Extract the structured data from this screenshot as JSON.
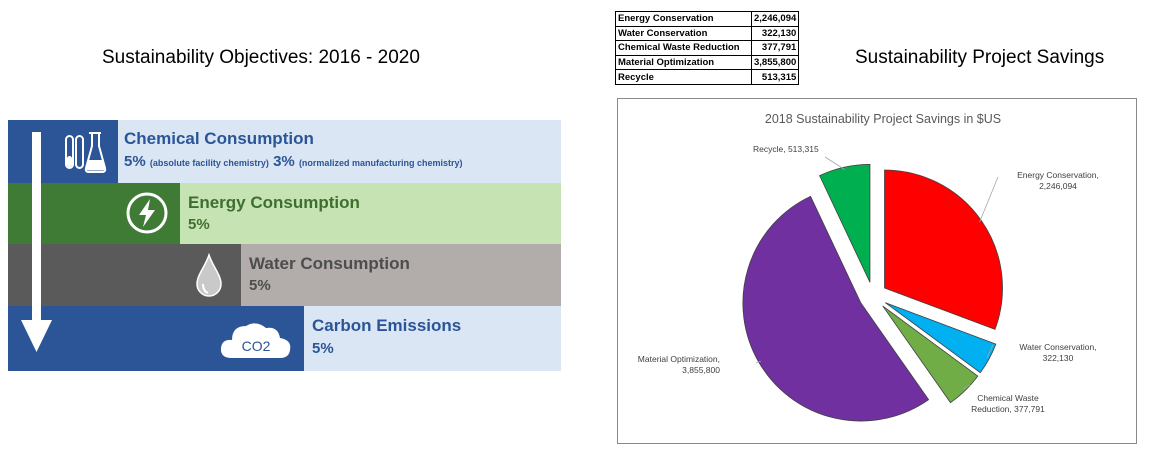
{
  "left_heading": "Sustainability Objectives: 2016 - 2020",
  "right_heading": "Sustainability Project Savings",
  "objectives": {
    "chemical": {
      "title": "Chemical Consumption",
      "value1": "5%",
      "note1": "(absolute facility chemistry)",
      "value2": "3%",
      "note2": "(normalized manufacturing chemistry)",
      "icon": "flask-icon"
    },
    "energy": {
      "title": "Energy Consumption",
      "value": "5%",
      "icon": "lightning-icon"
    },
    "water": {
      "title": "Water Consumption",
      "value": "5%",
      "icon": "water-drop-icon"
    },
    "carbon": {
      "title": "Carbon Emissions",
      "value": "5%",
      "icon": "co2-cloud-icon",
      "icon_text": "CO2"
    }
  },
  "table": {
    "rows": [
      {
        "name": "Energy Conservation",
        "value": "2,246,094"
      },
      {
        "name": "Water Conservation",
        "value": "322,130"
      },
      {
        "name": "Chemical Waste Reduction",
        "value": "377,791"
      },
      {
        "name": "Material Optimization",
        "value": "3,855,800"
      },
      {
        "name": "Recycle",
        "value": "513,315"
      }
    ]
  },
  "chart_data": {
    "type": "pie",
    "title": "2018 Sustainability Project Savings in $US",
    "exploded": true,
    "slices": [
      {
        "name": "Energy Conservation",
        "value": 2246094,
        "label_value": "2,246,094",
        "color": "#ff0000"
      },
      {
        "name": "Water Conservation",
        "value": 322130,
        "label_value": "322,130",
        "color": "#00b0f0"
      },
      {
        "name": "Chemical Waste Reduction",
        "value": 377791,
        "label_value": "377,791",
        "color": "#70ad47"
      },
      {
        "name": "Material Optimization",
        "value": 3855800,
        "label_value": "3,855,800",
        "color": "#7030a0"
      },
      {
        "name": "Recycle",
        "value": 513315,
        "label_value": "513,315",
        "color": "#00b050"
      }
    ]
  }
}
